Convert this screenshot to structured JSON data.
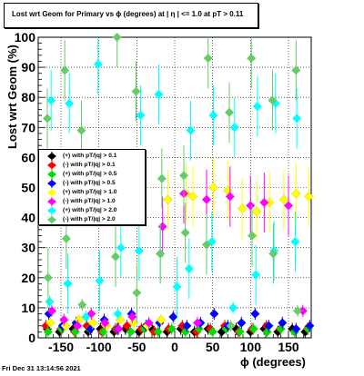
{
  "chart_data": {
    "type": "scatter",
    "title": "Lost wrt Geom for Primary vs ϕ (degrees) at |  η | <= 1.0 at pT > 0.11",
    "xlabel": "ϕ (degrees)",
    "ylabel": "Lost wrt Geom (%)",
    "xlim": [
      -180,
      180
    ],
    "ylim": [
      0,
      100
    ],
    "xticks": [
      -150,
      -100,
      -50,
      0,
      50,
      100,
      150
    ],
    "yticks": [
      0,
      10,
      20,
      30,
      40,
      50,
      60,
      70,
      80,
      90,
      100
    ],
    "grid": true,
    "legend_position": "middle-left",
    "series": [
      {
        "name": "(+) with pT/|q| > 0.1",
        "color": "#000000",
        "x": [
          -168,
          -152,
          -134,
          -114,
          -98,
          -80,
          -65,
          -47,
          -30,
          -10,
          8,
          26,
          44,
          62,
          81,
          100,
          118,
          136,
          155,
          172
        ],
        "y": [
          3,
          2,
          3,
          2,
          3,
          2,
          3,
          2,
          3,
          2,
          3,
          2,
          3,
          2,
          3,
          2,
          3,
          2,
          3,
          2
        ]
      },
      {
        "name": "(-) with pT/|q| > 0.1",
        "color": "#ff0000",
        "x": [
          -170,
          -150,
          -132,
          -116,
          -96,
          -78,
          -63,
          -44,
          -27,
          -8,
          10,
          29,
          47,
          66,
          84,
          102,
          121,
          139,
          158,
          175
        ],
        "y": [
          4,
          3,
          2,
          4,
          2,
          3,
          4,
          3,
          2,
          3,
          4,
          2,
          3,
          4,
          2,
          3,
          4,
          3,
          2,
          3
        ]
      },
      {
        "name": "(+) with pT/|q| > 0.5",
        "color": "#00dd00",
        "x": [
          -167,
          -149,
          -131,
          -112,
          -94,
          -76,
          -58,
          -40,
          -22,
          -4,
          14,
          32,
          50,
          68,
          86,
          104,
          122,
          140,
          158,
          176
        ],
        "y": [
          2,
          3,
          2,
          3,
          2,
          3,
          2,
          3,
          2,
          3,
          2,
          3,
          2,
          3,
          2,
          3,
          2,
          3,
          2,
          3
        ]
      },
      {
        "name": "(-) with pT/|q| > 0.5",
        "color": "#0000ff",
        "x": [
          -166,
          -148,
          -130,
          -111,
          -93,
          -75,
          -57,
          -38,
          -20,
          -2,
          16,
          34,
          52,
          70,
          88,
          106,
          124,
          142,
          160,
          178
        ],
        "y": [
          8,
          4,
          5,
          3,
          6,
          3,
          8,
          4,
          5,
          7,
          4,
          5,
          8,
          4,
          5,
          8,
          4,
          5,
          3,
          4
        ]
      },
      {
        "name": "(+) with pT/|q| > 1.0",
        "color": "#ffff00",
        "x": [
          -164,
          -144,
          -126,
          -108,
          -90,
          -72,
          -54,
          -36,
          -18,
          -9,
          15,
          24,
          51,
          70,
          89,
          108,
          125,
          144,
          160,
          177
        ],
        "y": [
          5,
          4,
          6,
          5,
          4,
          6,
          5,
          4,
          6,
          46,
          48,
          47,
          50,
          49,
          43,
          42,
          45,
          46,
          48,
          47
        ]
      },
      {
        "name": "(-) with pT/|q| > 1.0",
        "color": "#ff00ff",
        "x": [
          -162,
          -146,
          -128,
          -110,
          -92,
          -74,
          -56,
          -34,
          -16,
          12,
          30,
          42,
          73,
          100,
          118,
          150,
          169
        ],
        "y": [
          9,
          6,
          4,
          8,
          5,
          3,
          7,
          5,
          37,
          48,
          5,
          46,
          47,
          44,
          45,
          44,
          9
        ]
      },
      {
        "name": "(+) with pT/|q| > 2.0",
        "color": "#00ffff",
        "x": [
          -165,
          -163,
          -141,
          -139,
          -117,
          -101,
          -99,
          -75,
          -71,
          -47,
          -45,
          -21,
          -19,
          3,
          19,
          21,
          49,
          51,
          77,
          79,
          107,
          109,
          131,
          133,
          159,
          161
        ],
        "y": [
          12,
          79,
          18,
          78,
          7,
          91,
          19,
          8,
          30,
          29,
          74,
          81,
          28,
          17,
          23,
          69,
          32,
          74,
          10,
          70,
          21,
          77,
          29,
          78,
          32,
          73
        ]
      },
      {
        "name": "(-) with pT/|q| > 2.0",
        "color": "#66cc66",
        "x": [
          -168,
          -167,
          -145,
          -143,
          -123,
          -122,
          -78,
          -76,
          -51,
          -50,
          -19,
          -17,
          12,
          14,
          42,
          44,
          72,
          74,
          101,
          102,
          129,
          130,
          160,
          162
        ],
        "y": [
          73,
          20,
          89,
          33,
          69,
          11,
          27,
          100,
          82,
          15,
          28,
          53,
          54,
          35,
          31,
          93,
          75,
          4,
          93,
          34,
          79,
          28,
          89,
          9
        ]
      }
    ]
  },
  "timestamp": "Fri Dec 31 13:14:56 2021"
}
